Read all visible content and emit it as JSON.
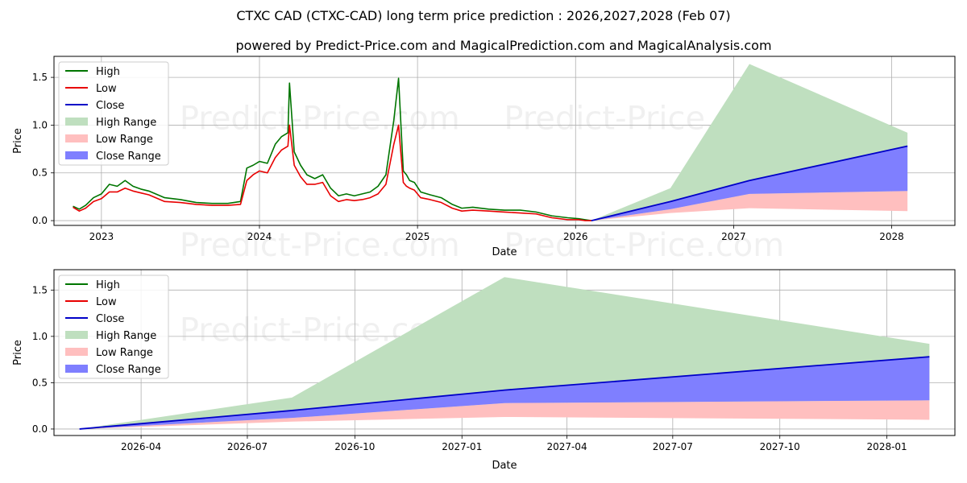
{
  "header": {
    "title": "CTXC CAD (CTXC-CAD) long term price prediction : 2026,2027,2028 (Feb 07)",
    "subtitle": "powered by Predict-Price.com and MagicalPrediction.com and MagicalAnalysis.com"
  },
  "watermark": "Predict-Price.com",
  "colors": {
    "high": "#007500",
    "low": "#e80000",
    "close": "#0000c8",
    "high_range": "#bfdfbf",
    "low_range": "#ffbfbf",
    "close_range": "#7f7fff"
  },
  "chart_data": [
    {
      "type": "line",
      "title": "",
      "xlabel": "Date",
      "ylabel": "Price",
      "xlim": [
        2022.7,
        2028.4
      ],
      "ylim": [
        -0.05,
        1.72
      ],
      "xticks": [
        {
          "v": 2023.0,
          "label": "2023"
        },
        {
          "v": 2024.0,
          "label": "2024"
        },
        {
          "v": 2025.0,
          "label": "2025"
        },
        {
          "v": 2026.0,
          "label": "2026"
        },
        {
          "v": 2027.0,
          "label": "2027"
        },
        {
          "v": 2028.0,
          "label": "2028"
        }
      ],
      "yticks": [
        {
          "v": 0.0,
          "label": "0.0"
        },
        {
          "v": 0.5,
          "label": "0.5"
        },
        {
          "v": 1.0,
          "label": "1.0"
        },
        {
          "v": 1.5,
          "label": "1.5"
        }
      ],
      "grid": true,
      "legend_position": "top-left",
      "legend": [
        "High",
        "Low",
        "Close",
        "High Range",
        "Low Range",
        "Close Range"
      ],
      "history": {
        "x": [
          2022.82,
          2022.86,
          2022.9,
          2022.95,
          2023.0,
          2023.05,
          2023.1,
          2023.15,
          2023.2,
          2023.25,
          2023.3,
          2023.4,
          2023.5,
          2023.6,
          2023.7,
          2023.8,
          2023.88,
          2023.92,
          2023.96,
          2024.0,
          2024.05,
          2024.1,
          2024.14,
          2024.18,
          2024.19,
          2024.22,
          2024.26,
          2024.3,
          2024.35,
          2024.4,
          2024.45,
          2024.5,
          2024.55,
          2024.6,
          2024.65,
          2024.7,
          2024.75,
          2024.8,
          2024.85,
          2024.88,
          2024.91,
          2024.93,
          2024.95,
          2024.98,
          2025.02,
          2025.08,
          2025.15,
          2025.22,
          2025.28,
          2025.35,
          2025.45,
          2025.55,
          2025.65,
          2025.75,
          2025.85,
          2025.95,
          2026.02,
          2026.06,
          2026.1
        ],
        "high": [
          0.15,
          0.12,
          0.16,
          0.24,
          0.28,
          0.38,
          0.36,
          0.42,
          0.36,
          0.33,
          0.31,
          0.24,
          0.22,
          0.19,
          0.18,
          0.18,
          0.2,
          0.55,
          0.58,
          0.62,
          0.6,
          0.8,
          0.88,
          0.92,
          1.44,
          0.72,
          0.58,
          0.48,
          0.44,
          0.48,
          0.34,
          0.26,
          0.28,
          0.26,
          0.28,
          0.3,
          0.36,
          0.48,
          1.05,
          1.49,
          0.52,
          0.48,
          0.42,
          0.4,
          0.3,
          0.27,
          0.24,
          0.17,
          0.13,
          0.14,
          0.12,
          0.11,
          0.11,
          0.09,
          0.05,
          0.03,
          0.02,
          0.01,
          0.0
        ],
        "low": [
          0.14,
          0.1,
          0.13,
          0.2,
          0.23,
          0.3,
          0.3,
          0.34,
          0.31,
          0.29,
          0.27,
          0.2,
          0.19,
          0.17,
          0.16,
          0.16,
          0.17,
          0.42,
          0.48,
          0.52,
          0.5,
          0.66,
          0.74,
          0.78,
          1.0,
          0.58,
          0.46,
          0.38,
          0.38,
          0.4,
          0.26,
          0.2,
          0.22,
          0.21,
          0.22,
          0.24,
          0.28,
          0.38,
          0.8,
          1.0,
          0.4,
          0.36,
          0.34,
          0.32,
          0.24,
          0.22,
          0.19,
          0.13,
          0.1,
          0.11,
          0.1,
          0.09,
          0.08,
          0.07,
          0.03,
          0.01,
          0.01,
          0.0,
          0.0
        ]
      },
      "forecast": {
        "x": [
          2026.1,
          2026.6,
          2027.1,
          2028.1
        ],
        "high_range_upper": [
          0.0,
          0.34,
          1.64,
          0.92
        ],
        "low_range_lower": [
          0.0,
          0.08,
          0.13,
          0.1
        ],
        "close_range_lower": [
          0.0,
          0.12,
          0.28,
          0.31
        ],
        "close": [
          0.0,
          0.2,
          0.42,
          0.78
        ]
      }
    },
    {
      "type": "line",
      "title": "",
      "xlabel": "Date",
      "ylabel": "Price",
      "xlim": [
        2026.04,
        2028.16
      ],
      "ylim": [
        -0.07,
        1.72
      ],
      "xticks": [
        {
          "v": 2026.245,
          "label": "2026-04"
        },
        {
          "v": 2026.495,
          "label": "2026-07"
        },
        {
          "v": 2026.748,
          "label": "2026-10"
        },
        {
          "v": 2027.0,
          "label": "2027-01"
        },
        {
          "v": 2027.247,
          "label": "2027-04"
        },
        {
          "v": 2027.496,
          "label": "2027-07"
        },
        {
          "v": 2027.748,
          "label": "2027-10"
        },
        {
          "v": 2028.0,
          "label": "2028-01"
        }
      ],
      "yticks": [
        {
          "v": 0.0,
          "label": "0.0"
        },
        {
          "v": 0.5,
          "label": "0.5"
        },
        {
          "v": 1.0,
          "label": "1.0"
        },
        {
          "v": 1.5,
          "label": "1.5"
        }
      ],
      "grid": true,
      "legend_position": "top-left",
      "legend": [
        "High",
        "Low",
        "Close",
        "High Range",
        "Low Range",
        "Close Range"
      ],
      "forecast": {
        "x": [
          2026.1,
          2026.6,
          2027.1,
          2028.1
        ],
        "high_range_upper": [
          0.0,
          0.34,
          1.64,
          0.92
        ],
        "low_range_lower": [
          0.0,
          0.08,
          0.13,
          0.1
        ],
        "close_range_lower": [
          0.0,
          0.12,
          0.28,
          0.31
        ],
        "close": [
          0.0,
          0.2,
          0.42,
          0.78
        ]
      }
    }
  ]
}
